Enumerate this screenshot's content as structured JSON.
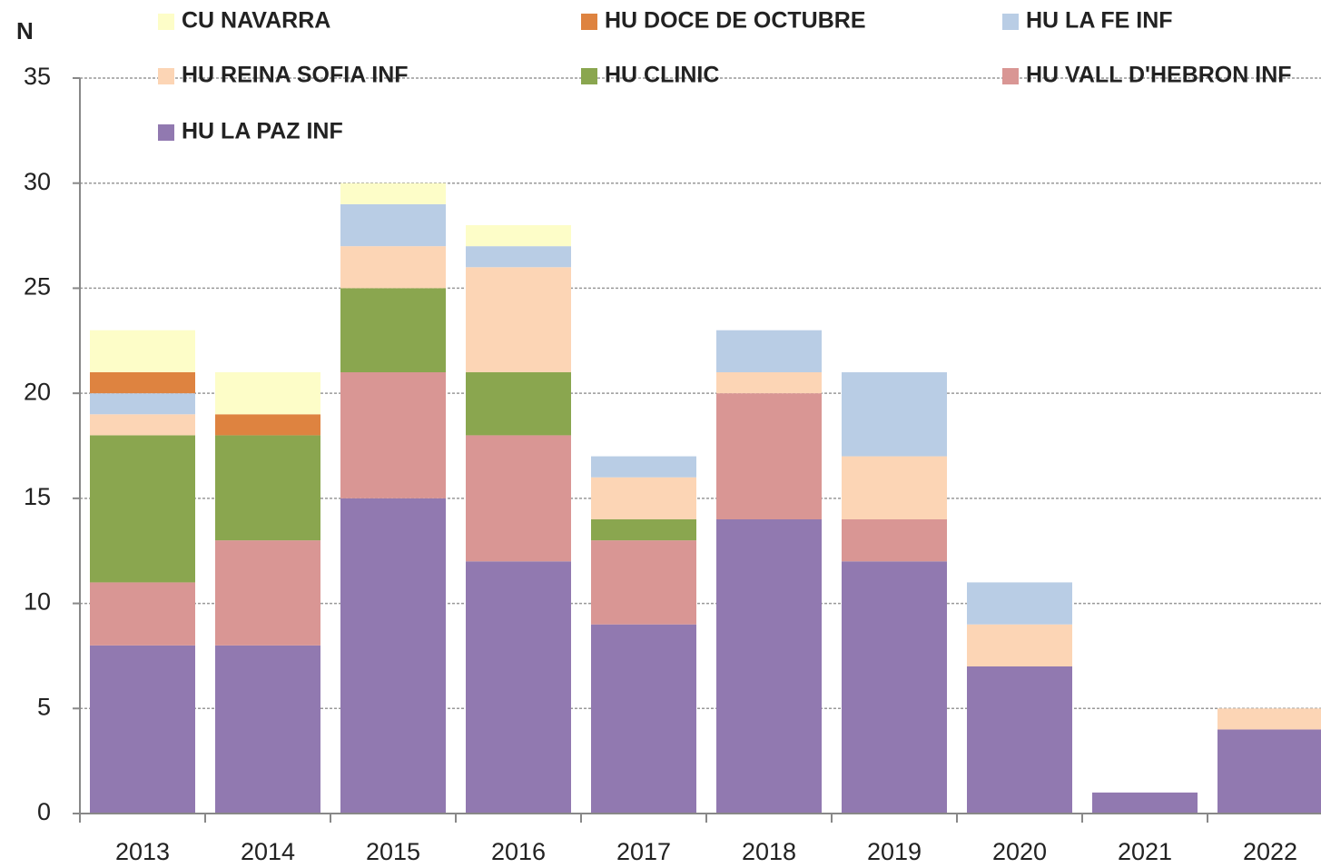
{
  "chart_data": {
    "type": "stacked_bar",
    "y_label": "N",
    "categories": [
      "2013",
      "2014",
      "2015",
      "2016",
      "2017",
      "2018",
      "2019",
      "2020",
      "2021",
      "2022"
    ],
    "series": [
      {
        "name": "CU NAVARRA",
        "color": "#fdfdc8",
        "values": [
          2,
          2,
          1,
          1,
          0,
          0,
          0,
          0,
          0,
          0
        ]
      },
      {
        "name": "HU DOCE DE OCTUBRE",
        "color": "#de8340",
        "values": [
          1,
          1,
          0,
          0,
          0,
          0,
          0,
          0,
          0,
          0
        ]
      },
      {
        "name": "HU LA FE INF",
        "color": "#b9cde5",
        "values": [
          1,
          0,
          2,
          1,
          1,
          2,
          4,
          2,
          0,
          0
        ]
      },
      {
        "name": "HU REINA SOFIA INF",
        "color": "#fcd5b5",
        "values": [
          1,
          0,
          2,
          5,
          2,
          1,
          3,
          2,
          0,
          1
        ]
      },
      {
        "name": "HU CLINIC",
        "color": "#8aa64f",
        "values": [
          7,
          5,
          4,
          3,
          1,
          0,
          0,
          0,
          0,
          0
        ]
      },
      {
        "name": "HU VALL D'HEBRON INF",
        "color": "#d99694",
        "values": [
          3,
          5,
          6,
          6,
          4,
          6,
          2,
          0,
          0,
          0
        ]
      },
      {
        "name": "HU LA PAZ INF",
        "color": "#9179b0",
        "values": [
          8,
          8,
          15,
          12,
          9,
          14,
          12,
          7,
          1,
          4
        ]
      }
    ],
    "ylim": [
      0,
      35
    ],
    "yticks": [
      0,
      5,
      10,
      15,
      20,
      25,
      30,
      35
    ],
    "grid": true
  }
}
